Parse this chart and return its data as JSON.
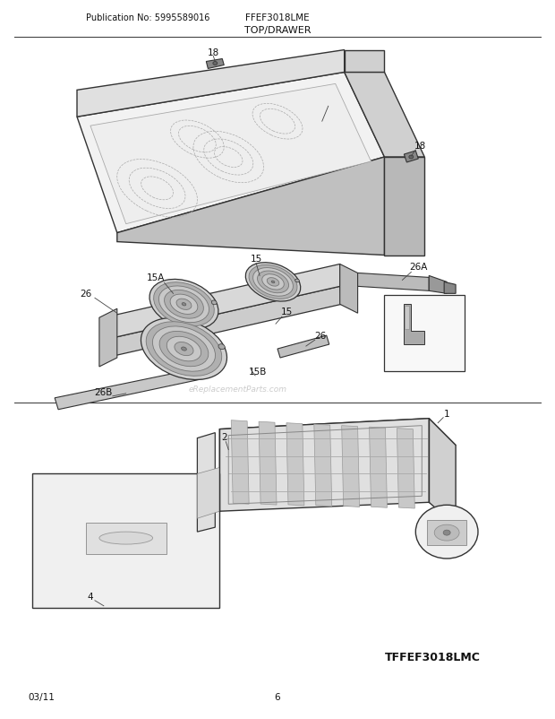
{
  "title": "TOP/DRAWER",
  "pub_no": "Publication No: 5995589016",
  "model": "FFEF3018LME",
  "bottom_model": "TFFEF3018LMC",
  "date": "03/11",
  "page": "6",
  "bg_color": "#ffffff",
  "line_color": "#333333",
  "watermark": "eReplacementParts.com"
}
